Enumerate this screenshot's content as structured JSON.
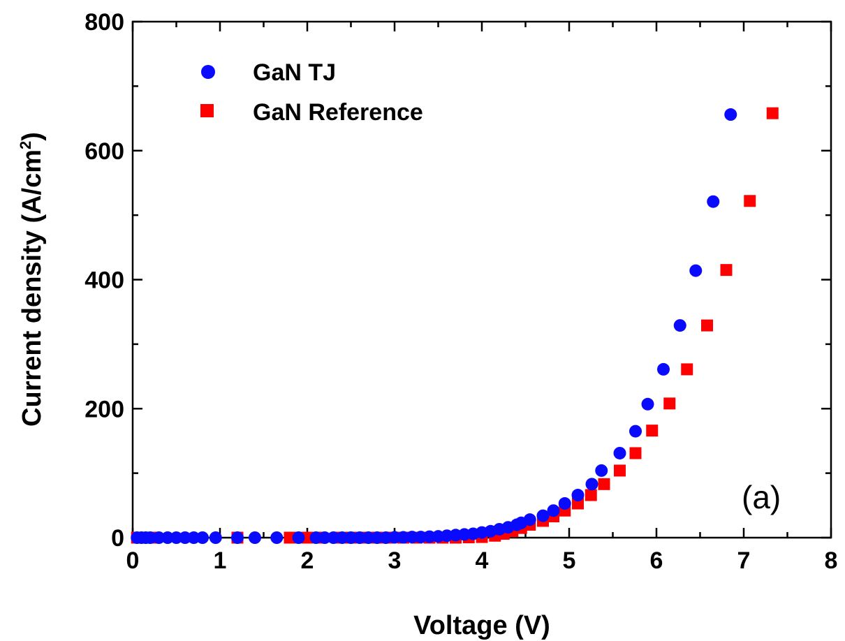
{
  "chart_data": {
    "type": "scatter",
    "title": "",
    "xlabel": "Voltage (V)",
    "ylabel_main": "Current density (A/cm",
    "ylabel_sup": "2",
    "ylabel_close": ")",
    "xlim": [
      0,
      8
    ],
    "ylim": [
      0,
      800
    ],
    "xticks": [
      "0",
      "1",
      "2",
      "3",
      "4",
      "5",
      "6",
      "7",
      "8"
    ],
    "yticks": [
      "0",
      "200",
      "400",
      "600",
      "800"
    ],
    "grid": false,
    "legend_position": "top-left",
    "annotation": "(a)",
    "series": [
      {
        "name": "GaN TJ",
        "marker": "circle",
        "color": "#0a0aff",
        "points": [
          [
            0.05,
            0
          ],
          [
            0.1,
            0
          ],
          [
            0.15,
            0
          ],
          [
            0.2,
            0
          ],
          [
            0.3,
            0
          ],
          [
            0.4,
            0
          ],
          [
            0.5,
            0
          ],
          [
            0.6,
            0
          ],
          [
            0.7,
            0
          ],
          [
            0.8,
            0
          ],
          [
            0.95,
            0
          ],
          [
            1.2,
            0
          ],
          [
            1.4,
            0
          ],
          [
            1.65,
            0
          ],
          [
            1.9,
            0
          ],
          [
            2.1,
            0
          ],
          [
            2.2,
            0
          ],
          [
            2.3,
            0
          ],
          [
            2.4,
            0
          ],
          [
            2.5,
            0
          ],
          [
            2.6,
            0
          ],
          [
            2.7,
            0
          ],
          [
            2.8,
            0
          ],
          [
            2.9,
            0
          ],
          [
            3.0,
            0.5
          ],
          [
            3.1,
            0.5
          ],
          [
            3.2,
            1
          ],
          [
            3.3,
            1
          ],
          [
            3.4,
            1.5
          ],
          [
            3.5,
            2
          ],
          [
            3.6,
            3
          ],
          [
            3.7,
            4
          ],
          [
            3.8,
            5
          ],
          [
            3.9,
            6
          ],
          [
            4.0,
            8
          ],
          [
            4.1,
            10
          ],
          [
            4.2,
            13
          ],
          [
            4.3,
            16
          ],
          [
            4.4,
            20
          ],
          [
            4.45,
            23
          ],
          [
            4.55,
            28
          ],
          [
            4.7,
            34
          ],
          [
            4.82,
            42
          ],
          [
            4.95,
            53
          ],
          [
            5.1,
            66
          ],
          [
            5.26,
            83
          ],
          [
            5.37,
            104
          ],
          [
            5.58,
            131
          ],
          [
            5.76,
            165
          ],
          [
            5.9,
            207
          ],
          [
            6.08,
            261
          ],
          [
            6.27,
            329
          ],
          [
            6.45,
            414
          ],
          [
            6.65,
            521
          ],
          [
            6.85,
            656
          ]
        ]
      },
      {
        "name": "GaN Reference",
        "marker": "square",
        "color": "#ff0000",
        "points": [
          [
            0.05,
            0
          ],
          [
            0.15,
            0
          ],
          [
            0.25,
            0
          ],
          [
            1.2,
            0
          ],
          [
            1.8,
            0
          ],
          [
            2.0,
            0
          ],
          [
            2.15,
            0
          ],
          [
            2.35,
            0
          ],
          [
            2.5,
            0
          ],
          [
            2.65,
            0
          ],
          [
            2.8,
            0
          ],
          [
            2.95,
            0
          ],
          [
            3.1,
            0
          ],
          [
            3.25,
            0
          ],
          [
            3.4,
            0
          ],
          [
            3.55,
            0
          ],
          [
            3.7,
            0
          ],
          [
            3.85,
            0.5
          ],
          [
            4.0,
            1
          ],
          [
            4.15,
            3
          ],
          [
            4.25,
            6
          ],
          [
            4.35,
            10
          ],
          [
            4.45,
            15
          ],
          [
            4.55,
            20
          ],
          [
            4.7,
            26
          ],
          [
            4.82,
            33
          ],
          [
            4.95,
            42
          ],
          [
            5.1,
            53
          ],
          [
            5.25,
            66
          ],
          [
            5.4,
            83
          ],
          [
            5.58,
            104
          ],
          [
            5.76,
            131
          ],
          [
            5.95,
            166
          ],
          [
            6.15,
            208
          ],
          [
            6.35,
            261
          ],
          [
            6.58,
            329
          ],
          [
            6.8,
            415
          ],
          [
            7.07,
            522
          ],
          [
            7.33,
            658
          ]
        ]
      }
    ]
  }
}
